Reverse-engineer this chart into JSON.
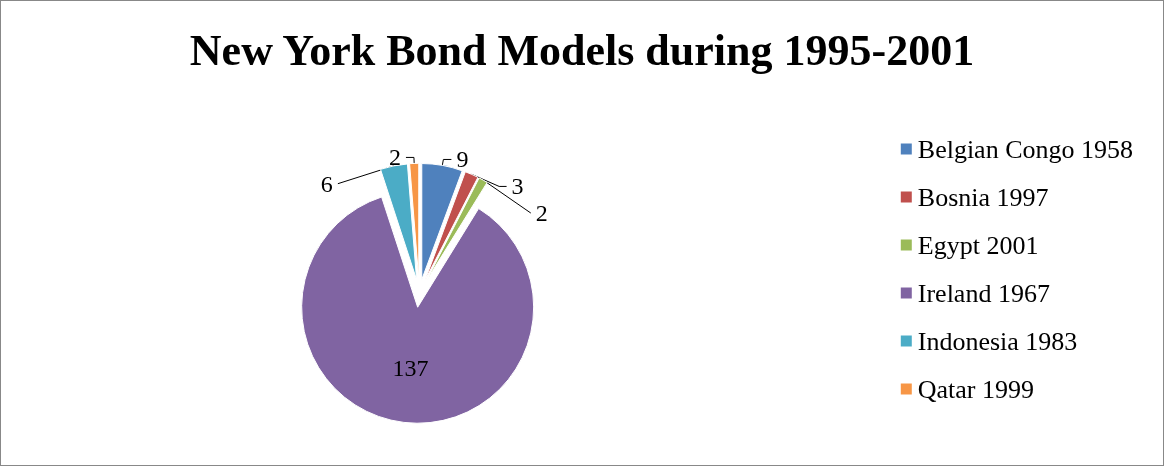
{
  "chart_data": {
    "type": "pie",
    "title": "New York Bond Models during 1995-2001",
    "categories": [
      "Belgian Congo 1958",
      "Bosnia 1997",
      "Egypt 2001",
      "Ireland 1967",
      "Indonesia 1983",
      "Qatar 1999"
    ],
    "values": [
      9,
      3,
      2,
      137,
      6,
      2
    ],
    "colors": [
      "#4f81bd",
      "#c0504d",
      "#9bbb59",
      "#8064a2",
      "#4bacc6",
      "#f79646"
    ],
    "data_labels": true,
    "legend": "right"
  }
}
